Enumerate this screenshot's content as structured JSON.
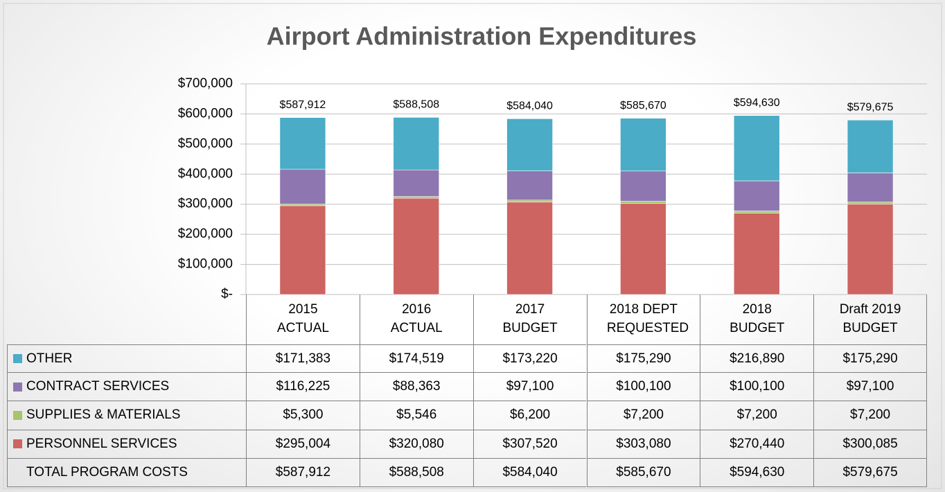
{
  "chart_data": {
    "type": "stacked_bar",
    "title": "Airport Administration Expenditures",
    "categories": [
      "2015 ACTUAL",
      "2016 ACTUAL",
      "2017 BUDGET",
      "2018 DEPT REQUESTED",
      "2018 BUDGET",
      "Draft 2019 BUDGET"
    ],
    "series": [
      {
        "name": "OTHER",
        "color": "#4aacc6",
        "values": [
          171383,
          174519,
          173220,
          175290,
          216890,
          175290
        ],
        "value_labels": [
          "$171,383",
          "$174,519",
          "$173,220",
          "$175,290",
          "$216,890",
          "$175,290"
        ]
      },
      {
        "name": "CONTRACT SERVICES",
        "color": "#8e77b0",
        "values": [
          116225,
          88363,
          97100,
          100100,
          100100,
          97100
        ],
        "value_labels": [
          "$116,225",
          "$88,363",
          "$97,100",
          "$100,100",
          "$100,100",
          "$97,100"
        ]
      },
      {
        "name": "SUPPLIES & MATERIALS",
        "color": "#a6c46c",
        "values": [
          5300,
          5546,
          6200,
          7200,
          7200,
          7200
        ],
        "value_labels": [
          "$5,300",
          "$5,546",
          "$6,200",
          "$7,200",
          "$7,200",
          "$7,200"
        ]
      },
      {
        "name": "PERSONNEL SERVICES",
        "color": "#cd6461",
        "values": [
          295004,
          320080,
          307520,
          303080,
          270440,
          300085
        ],
        "value_labels": [
          "$295,004",
          "$320,080",
          "$307,520",
          "$303,080",
          "$270,440",
          "$300,085"
        ]
      }
    ],
    "totals": {
      "name": "TOTAL PROGRAM COSTS",
      "values": [
        587912,
        588508,
        584040,
        585670,
        594630,
        579675
      ],
      "value_labels": [
        "$587,912",
        "$588,508",
        "$584,040",
        "$585,670",
        "$594,630",
        "$579,675"
      ]
    },
    "ylim": [
      0,
      700000
    ],
    "yticks": [
      {
        "value": 0,
        "label": "$-"
      },
      {
        "value": 100000,
        "label": "$100,000"
      },
      {
        "value": 200000,
        "label": "$200,000"
      },
      {
        "value": 300000,
        "label": "$300,000"
      },
      {
        "value": 400000,
        "label": "$400,000"
      },
      {
        "value": 500000,
        "label": "$500,000"
      },
      {
        "value": 600000,
        "label": "$600,000"
      },
      {
        "value": 700000,
        "label": "$700,000"
      }
    ],
    "grid": true
  }
}
